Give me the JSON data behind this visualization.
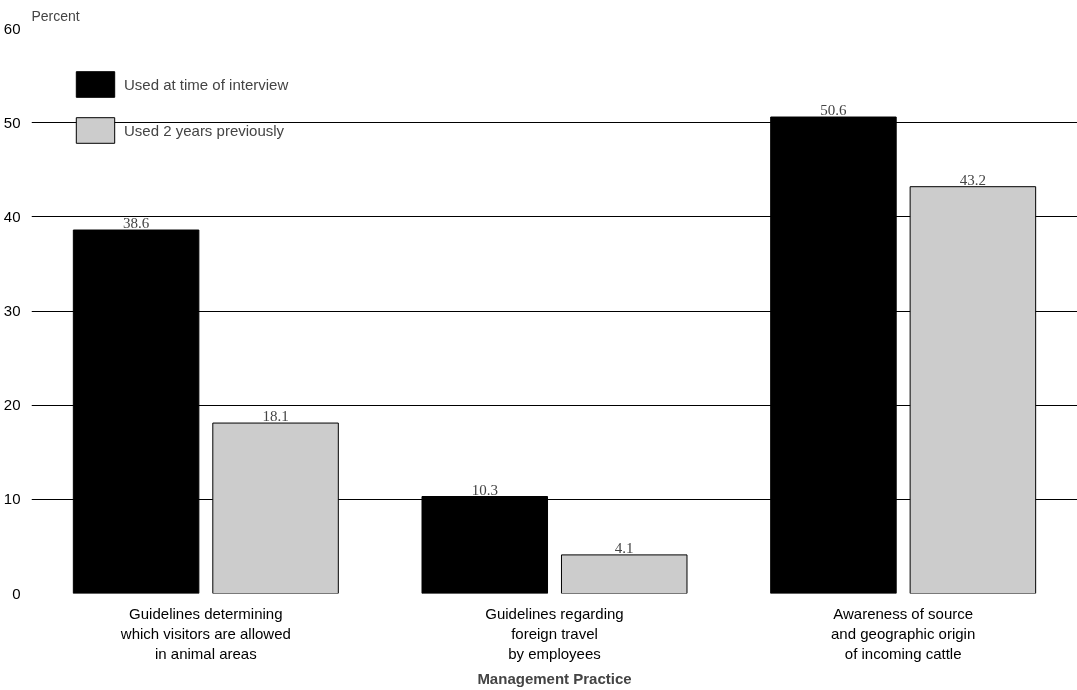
{
  "chart_data": {
    "type": "bar",
    "ylabel": "Percent",
    "xlabel": "Management Practice",
    "categories": [
      "Guidelines determining\nwhich visitors are allowed\nin animal areas",
      "Guidelines regarding\nforeign travel\nby employees",
      "Awareness of source\nand geographic origin\nof incoming cattle"
    ],
    "series": [
      {
        "name": "Used at time of interview",
        "color": "#000000",
        "values": [
          38.6,
          10.3,
          50.6
        ]
      },
      {
        "name": "Used 2 years previously",
        "color": "#cccccc",
        "values": [
          18.1,
          4.1,
          43.2
        ]
      }
    ],
    "ylim": [
      0,
      60
    ],
    "yticks": [
      0,
      10,
      20,
      30,
      40,
      50,
      60
    ],
    "grid": "y",
    "legend": "top left",
    "data_labels": true
  }
}
